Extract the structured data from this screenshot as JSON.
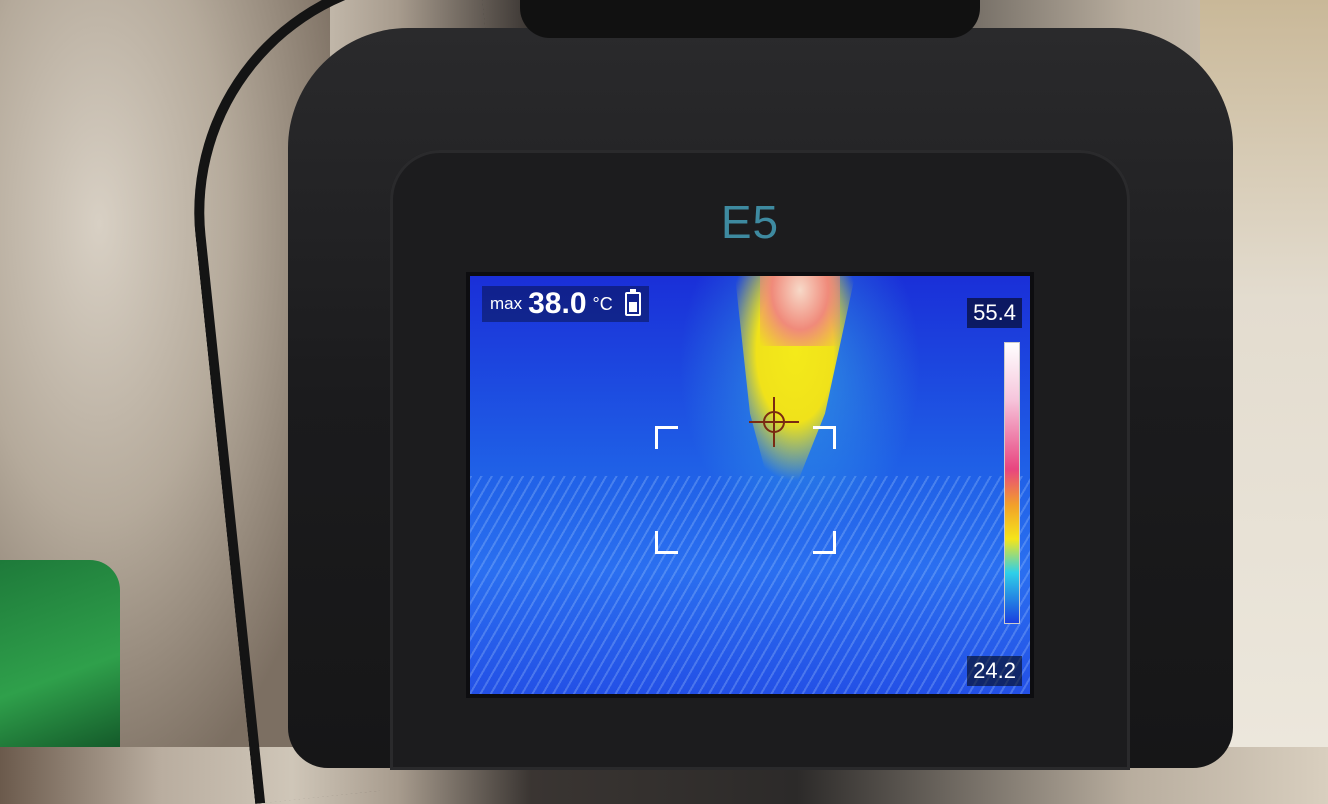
{
  "device": {
    "model": "E5"
  },
  "thermal_display": {
    "max_label": "max",
    "max_value": "38.0",
    "max_unit": "°C",
    "scale_max": "55.4",
    "scale_min": "24.2",
    "palette_colors": [
      "#ffffff",
      "#e8457f",
      "#f2a12a",
      "#f5e51a",
      "#2fd0e8",
      "#1a3fe0"
    ]
  },
  "icons": [
    "battery-icon",
    "crosshair-icon",
    "measurement-bracket"
  ]
}
